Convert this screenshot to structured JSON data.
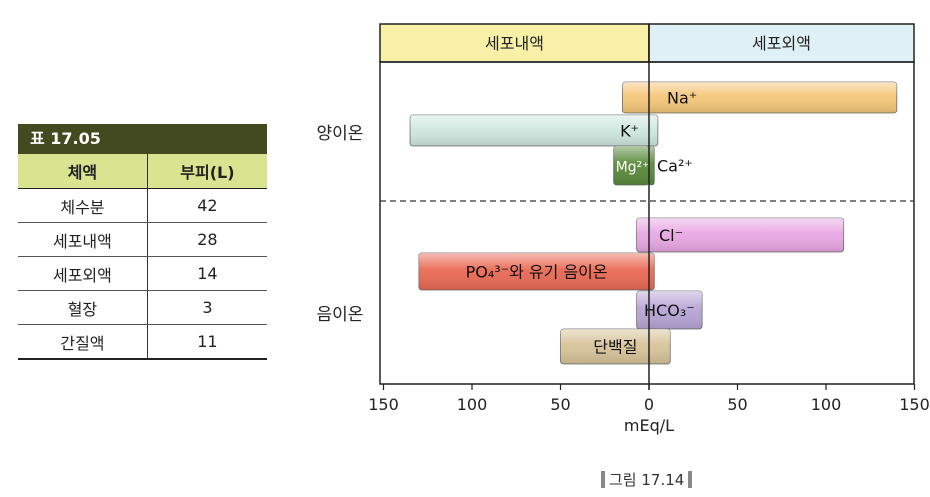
{
  "table": {
    "title": "표 17.05",
    "headers": [
      "체액",
      "부피(L)"
    ],
    "rows": [
      [
        "체수분",
        "42"
      ],
      [
        "세포내액",
        "28"
      ],
      [
        "세포외액",
        "14"
      ],
      [
        "혈장",
        "3"
      ],
      [
        "간질액",
        "11"
      ]
    ]
  },
  "chart_data": {
    "type": "bar",
    "orientation": "horizontal",
    "xlabel": "mEq/L",
    "x_axis": {
      "left_range": [
        150,
        0
      ],
      "right_range": [
        0,
        150
      ],
      "ticks": [
        "150",
        "100",
        "50",
        "0",
        "50",
        "100",
        "150"
      ]
    },
    "regions": {
      "left": {
        "label": "세포내액",
        "color": "#f7f0a6"
      },
      "right": {
        "label": "세포외액",
        "color": "#dff0f6"
      }
    },
    "groups": [
      {
        "label": "양이온"
      },
      {
        "label": "음이온"
      }
    ],
    "bars": [
      {
        "label": "Na⁺",
        "group": "양이온",
        "intracellular": 15,
        "extracellular": 140,
        "color": "#f5c77a"
      },
      {
        "label": "K⁺",
        "group": "양이온",
        "intracellular": 135,
        "extracellular": 5,
        "color": "#cfe8e0"
      },
      {
        "label": "Mg²⁺",
        "group": "양이온",
        "intracellular": 20,
        "extracellular": 0,
        "color": "#5a8a3c"
      },
      {
        "label": "Ca²⁺",
        "group": "양이온",
        "intracellular": 0,
        "extracellular": 3,
        "color": "#5a8a3c"
      },
      {
        "label": "Cl⁻",
        "group": "음이온",
        "intracellular": 7,
        "extracellular": 110,
        "color": "#e9a8e4"
      },
      {
        "label": "PO₄³⁻와 유기 음이온",
        "group": "음이온",
        "intracellular": 130,
        "extracellular": 3,
        "color": "#ea6a55"
      },
      {
        "label": "HCO₃⁻",
        "group": "음이온",
        "intracellular": 7,
        "extracellular": 30,
        "color": "#b9a6d6"
      },
      {
        "label": "단백질",
        "group": "음이온",
        "intracellular": 50,
        "extracellular": 12,
        "color": "#d7c49a"
      }
    ],
    "caption": "그림 17.14"
  }
}
